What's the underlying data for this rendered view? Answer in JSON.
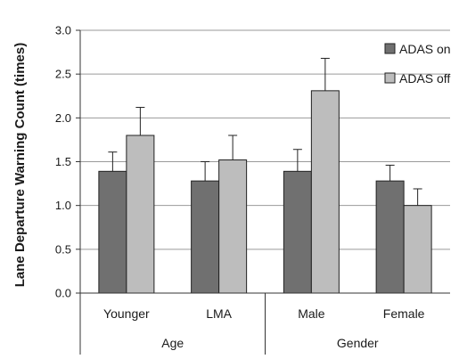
{
  "chart_data": {
    "type": "bar",
    "title": "",
    "xlabel": "",
    "ylabel": "Lane Departure Warning Count (times)",
    "ylim": [
      0,
      3.0
    ],
    "yticks": [
      "0.0",
      "0.5",
      "1.0",
      "1.5",
      "2.0",
      "2.5",
      "3.0"
    ],
    "grid": true,
    "legend_position": "top-right",
    "categories": [
      "Younger",
      "LMA",
      "Male",
      "Female"
    ],
    "groups": [
      {
        "label": "Age",
        "categories": [
          "Younger",
          "LMA"
        ]
      },
      {
        "label": "Gender",
        "categories": [
          "Male",
          "Female"
        ]
      }
    ],
    "series": [
      {
        "name": "ADAS on",
        "color": "#707070",
        "values": [
          1.39,
          1.28,
          1.39,
          1.28
        ],
        "errors": [
          0.22,
          0.22,
          0.25,
          0.18
        ]
      },
      {
        "name": "ADAS off",
        "color": "#bdbdbd",
        "values": [
          1.8,
          1.52,
          2.31,
          1.0
        ],
        "errors": [
          0.32,
          0.28,
          0.37,
          0.19
        ]
      }
    ]
  }
}
